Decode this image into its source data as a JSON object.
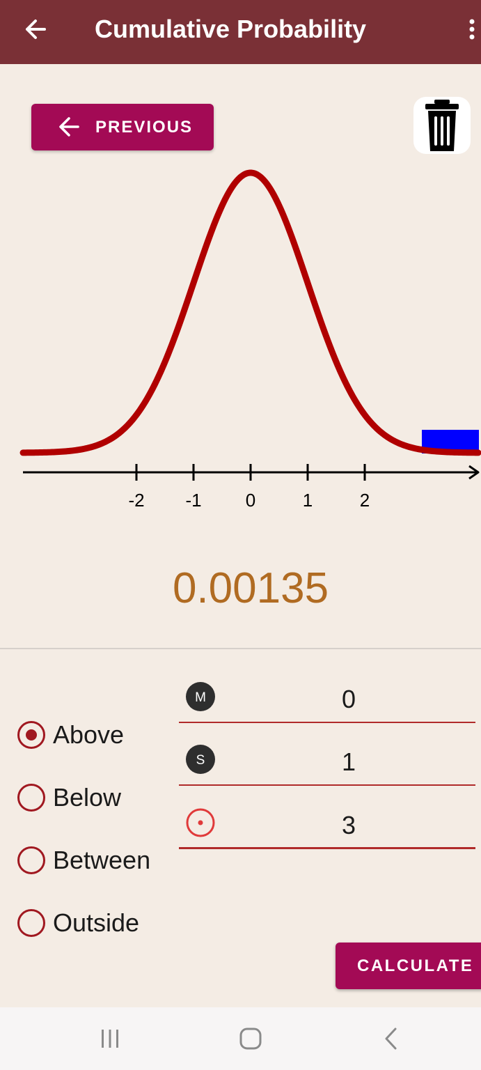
{
  "app_bar": {
    "title": "Cumulative Probability",
    "back_icon": "arrow-left-icon",
    "menu_icon": "more-vert-icon",
    "background_color": "#7a3036"
  },
  "previous_button": {
    "label": "PREVIOUS",
    "icon": "arrow-left-icon",
    "color": "#a30a55"
  },
  "clear_button": {
    "icon": "trash-icon"
  },
  "chart_data": {
    "type": "area",
    "curve": "normal density",
    "mean": 0,
    "sd": 1,
    "x_ticks": [
      "-2",
      "-1",
      "0",
      "1",
      "2"
    ],
    "shaded_region": {
      "from": 3,
      "to": null,
      "direction": "above"
    },
    "curve_color": "#b00000",
    "shade_color": "#0000ff"
  },
  "result": {
    "value": "0.00135",
    "color": "#b06b22"
  },
  "options": {
    "selected": "Above",
    "items": [
      {
        "label": "Above",
        "selected": true
      },
      {
        "label": "Below",
        "selected": false
      },
      {
        "label": "Between",
        "selected": false
      },
      {
        "label": "Outside",
        "selected": false
      }
    ]
  },
  "fields": [
    {
      "icon": "mean-icon",
      "icon_text": "M",
      "value": "0"
    },
    {
      "icon": "std-dev-icon",
      "icon_text": "S",
      "value": "1"
    },
    {
      "icon": "target-icon",
      "icon_text": "",
      "value": "3"
    }
  ],
  "calculate_button": {
    "label": "CALCULATE",
    "color": "#a30a55"
  },
  "system_nav": {
    "recents_icon": "recents-icon",
    "home_icon": "home-icon",
    "back_icon": "nav-back-icon"
  }
}
